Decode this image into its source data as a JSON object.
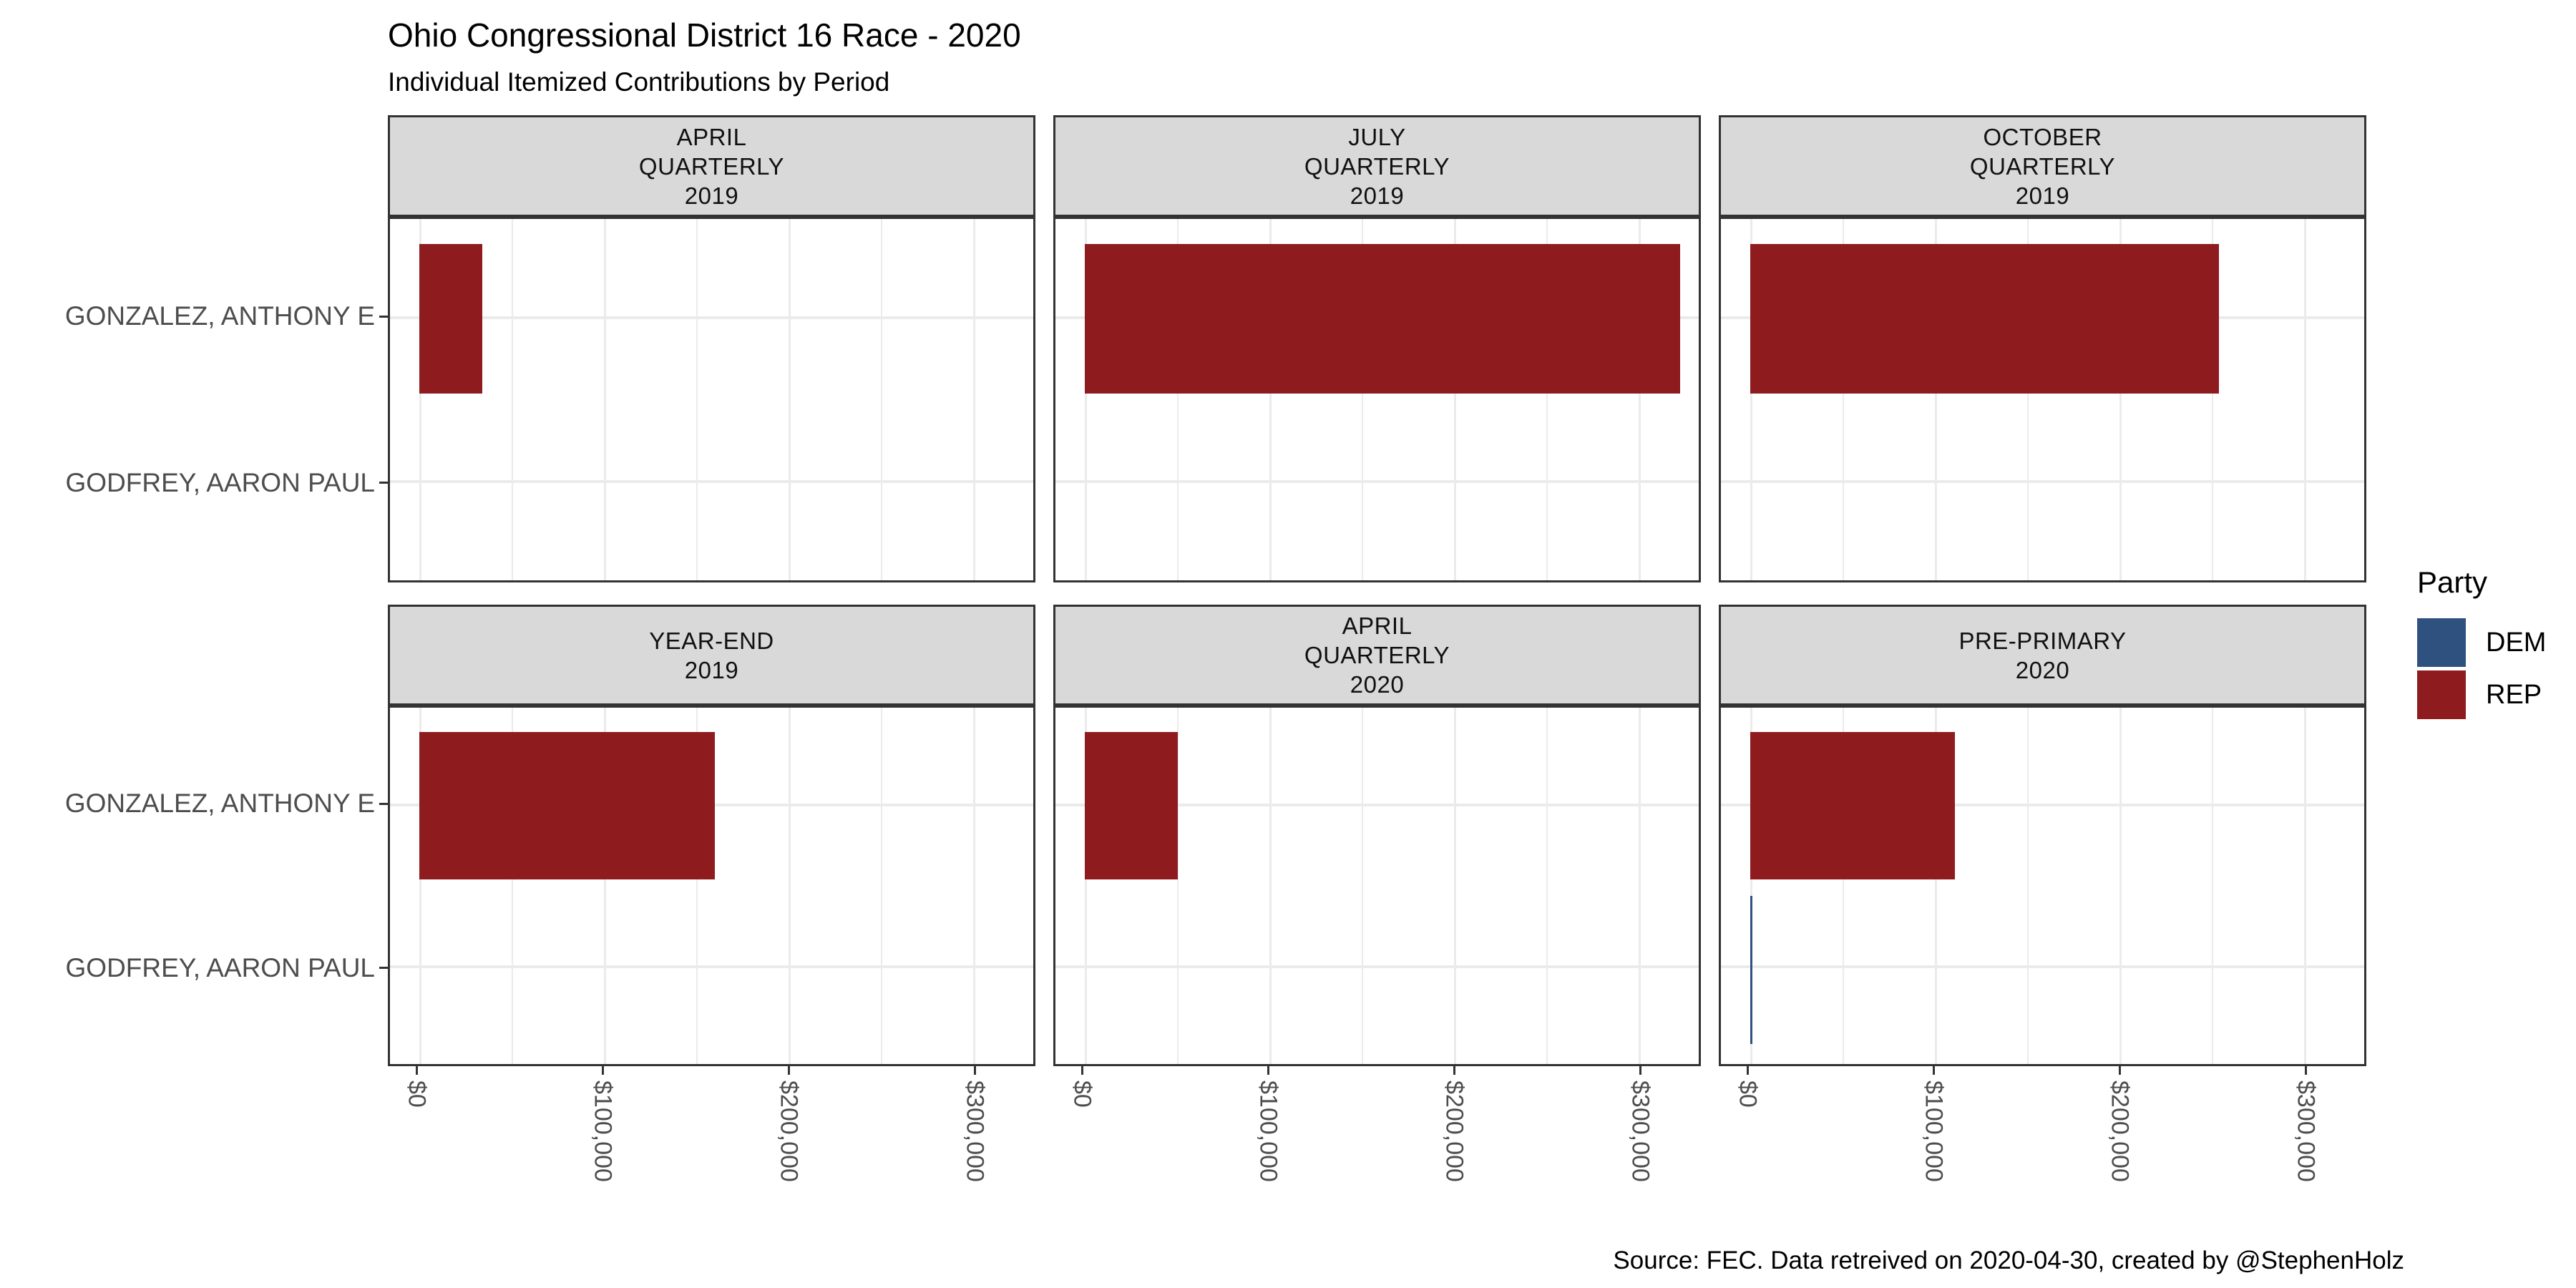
{
  "header": {
    "title": "Ohio Congressional District 16 Race - 2020",
    "subtitle": "Individual Itemized Contributions by Period"
  },
  "footer": {
    "caption": "Source: FEC. Data retreived on 2020-04-30, created by @StephenHolz"
  },
  "legend": {
    "title": "Party",
    "items": [
      {
        "party": "DEM",
        "label": "DEM"
      },
      {
        "party": "REP",
        "label": "REP"
      }
    ]
  },
  "parties": {
    "DEM": {
      "color": "#2E5180"
    },
    "REP": {
      "color": "#8E1B1D"
    }
  },
  "chart_data": {
    "type": "bar",
    "orientation": "horizontal",
    "title": "Ohio Congressional District 16 Race - 2020",
    "subtitle": "Individual Itemized Contributions by Period",
    "candidates": [
      "GONZALEZ, ANTHONY E",
      "GODFREY, AARON PAUL"
    ],
    "x_axis": {
      "tick_values": [
        0,
        100000,
        200000,
        300000
      ],
      "tick_labels": [
        "$0",
        "$100,000",
        "$200,000",
        "$300,000"
      ],
      "minor_tick_values": [
        50000,
        150000,
        250000
      ],
      "unit": "USD",
      "approx_panel_max": 332000
    },
    "facets": [
      {
        "label_lines": [
          "APRIL",
          "QUARTERLY",
          "2019"
        ],
        "bars": [
          {
            "candidate": "GONZALEZ, ANTHONY E",
            "party": "REP",
            "value": 34000
          },
          {
            "candidate": "GODFREY, AARON PAUL",
            "party": "DEM",
            "value": 0
          }
        ]
      },
      {
        "label_lines": [
          "JULY",
          "QUARTERLY",
          "2019"
        ],
        "bars": [
          {
            "candidate": "GONZALEZ, ANTHONY E",
            "party": "REP",
            "value": 320000
          },
          {
            "candidate": "GODFREY, AARON PAUL",
            "party": "DEM",
            "value": 0
          }
        ]
      },
      {
        "label_lines": [
          "OCTOBER",
          "QUARTERLY",
          "2019"
        ],
        "bars": [
          {
            "candidate": "GONZALEZ, ANTHONY E",
            "party": "REP",
            "value": 252000
          },
          {
            "candidate": "GODFREY, AARON PAUL",
            "party": "DEM",
            "value": 0
          }
        ]
      },
      {
        "label_lines": [
          "YEAR-END",
          "2019"
        ],
        "bars": [
          {
            "candidate": "GONZALEZ, ANTHONY E",
            "party": "REP",
            "value": 159000
          },
          {
            "candidate": "GODFREY, AARON PAUL",
            "party": "DEM",
            "value": 0
          }
        ]
      },
      {
        "label_lines": [
          "APRIL",
          "QUARTERLY",
          "2020"
        ],
        "bars": [
          {
            "candidate": "GONZALEZ, ANTHONY E",
            "party": "REP",
            "value": 50000
          },
          {
            "candidate": "GODFREY, AARON PAUL",
            "party": "DEM",
            "value": 0
          }
        ]
      },
      {
        "label_lines": [
          "PRE-PRIMARY",
          "2020"
        ],
        "bars": [
          {
            "candidate": "GONZALEZ, ANTHONY E",
            "party": "REP",
            "value": 110000
          },
          {
            "candidate": "GODFREY, AARON PAUL",
            "party": "DEM",
            "value": 1000
          }
        ]
      }
    ]
  }
}
